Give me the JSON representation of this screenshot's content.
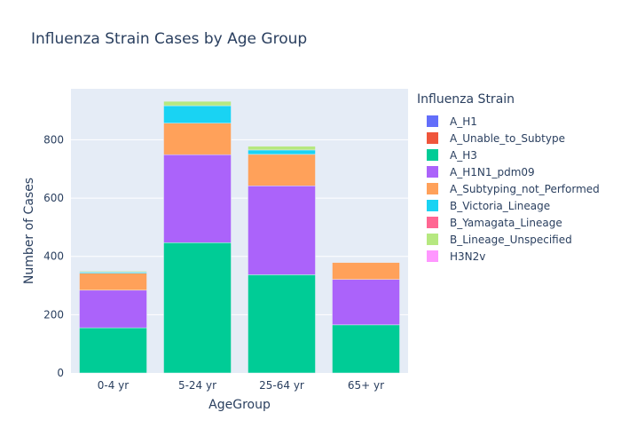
{
  "chart_data": {
    "type": "bar",
    "barmode": "stack",
    "title": "Influenza Strain Cases by Age Group",
    "xlabel": "AgeGroup",
    "ylabel": "Number of Cases",
    "legend_title": "Influenza Strain",
    "legend_position": "right",
    "grid": true,
    "ylim": [
      0,
      975
    ],
    "yticks": [
      0,
      200,
      400,
      600,
      800
    ],
    "categories": [
      "0-4 yr",
      "5-24 yr",
      "25-64 yr",
      "65+ yr"
    ],
    "series": [
      {
        "name": "A_H1",
        "color": "#636efa",
        "values": [
          0,
          0,
          0,
          0
        ]
      },
      {
        "name": "A_Unable_to_Subtype",
        "color": "#EF553B",
        "values": [
          0,
          0,
          0,
          0
        ]
      },
      {
        "name": "A_H3",
        "color": "#00cc96",
        "values": [
          155,
          447,
          337,
          165
        ]
      },
      {
        "name": "A_H1N1_pdm09",
        "color": "#ab63fa",
        "values": [
          129,
          302,
          305,
          156
        ]
      },
      {
        "name": "A_Subtyping_not_Performed",
        "color": "#FFA15A",
        "values": [
          58,
          108,
          108,
          58
        ]
      },
      {
        "name": "B_Victoria_Lineage",
        "color": "#19d3f3",
        "values": [
          4,
          60,
          15,
          0
        ]
      },
      {
        "name": "B_Yamagata_Lineage",
        "color": "#FF6692",
        "values": [
          0,
          0,
          0,
          0
        ]
      },
      {
        "name": "B_Lineage_Unspecified",
        "color": "#B6E880",
        "values": [
          3,
          15,
          13,
          0
        ]
      },
      {
        "name": "H3N2v",
        "color": "#FF97FF",
        "values": [
          0,
          0,
          0,
          0
        ]
      }
    ]
  }
}
